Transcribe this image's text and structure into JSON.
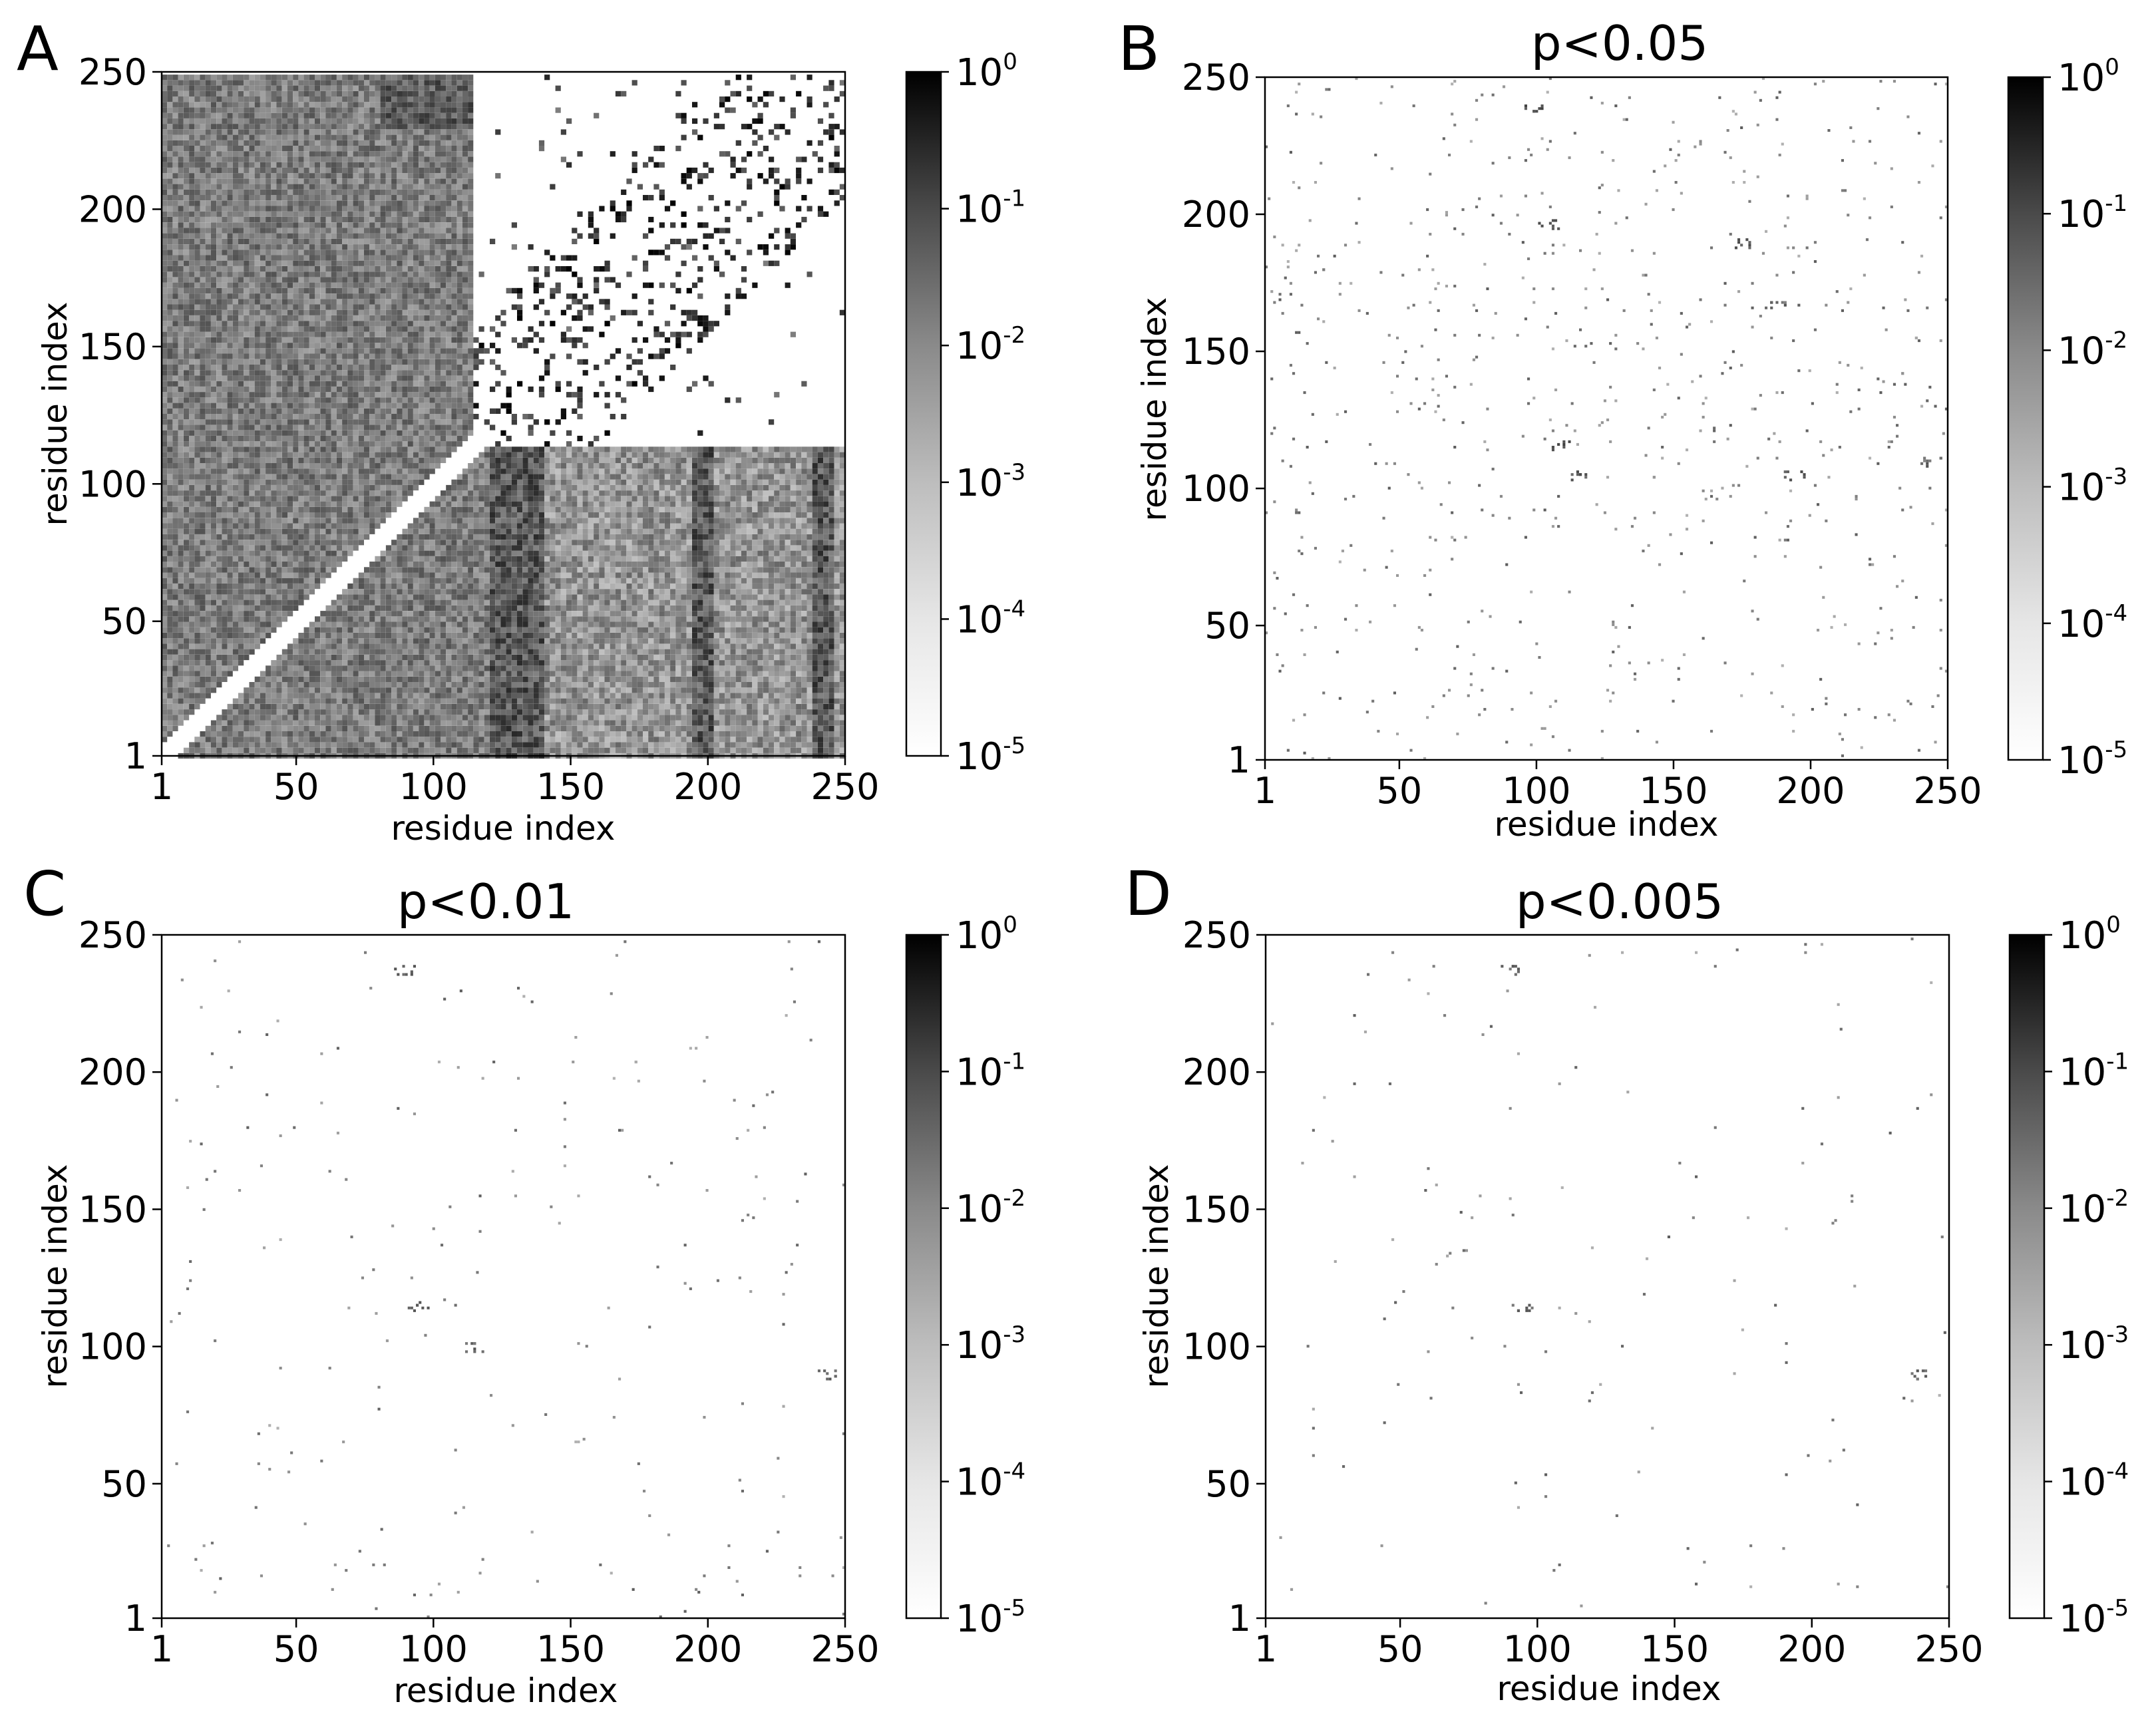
{
  "chart_data": [
    {
      "type": "heatmap",
      "panel": "A",
      "title": "",
      "xlabel": "residue index",
      "ylabel": "residue index",
      "xlim": [
        1,
        250
      ],
      "ylim": [
        1,
        250
      ],
      "xticks": [
        "1",
        "50",
        "100",
        "150",
        "200",
        "250"
      ],
      "yticks": [
        "1",
        "50",
        "100",
        "150",
        "200",
        "250"
      ],
      "color_scale": "log",
      "colorbar": {
        "min": 1e-05,
        "max": 1,
        "ticks": [
          "-5",
          "-4",
          "-3",
          "-2",
          "-1",
          "0"
        ],
        "colormap": "white-to-black"
      },
      "description": "Dense matrix. Lower-left triangle and left/upper-left region filled with noisy grey values; empty diagonal band from (1,1) to (120,120). Upper-right region mostly white with dark outlined contact blobs near the diagonal from 120 to 250. Dark vertical streaks at x≈110-140, 195-200, 240-245 below y≈110."
    },
    {
      "type": "heatmap",
      "panel": "B",
      "title": "p<0.05",
      "xlabel": "residue index",
      "ylabel": "residue index",
      "xlim": [
        1,
        250
      ],
      "ylim": [
        1,
        250
      ],
      "xticks": [
        "1",
        "50",
        "100",
        "150",
        "200",
        "250"
      ],
      "yticks": [
        "1",
        "50",
        "100",
        "150",
        "200",
        "250"
      ],
      "color_scale": "log",
      "colorbar": {
        "min": 1e-05,
        "max": 1,
        "ticks": [
          "-5",
          "-4",
          "-3",
          "-2",
          "-1",
          "0"
        ],
        "colormap": "white-to-black"
      },
      "clusters": [
        {
          "x": 100,
          "y": 240,
          "value": 0.05
        },
        {
          "x": 110,
          "y": 116,
          "value": 0.05
        },
        {
          "x": 115,
          "y": 105,
          "value": 0.03
        },
        {
          "x": 105,
          "y": 197,
          "value": 0.03
        },
        {
          "x": 175,
          "y": 190,
          "value": 0.03
        },
        {
          "x": 195,
          "y": 105,
          "value": 0.03
        },
        {
          "x": 188,
          "y": 168,
          "value": 0.02
        },
        {
          "x": 245,
          "y": 110,
          "value": 0.02
        }
      ],
      "scatter_density": 700
    },
    {
      "type": "heatmap",
      "panel": "C",
      "title": "p<0.01",
      "xlabel": "residue index",
      "ylabel": "residue index",
      "xlim": [
        1,
        250
      ],
      "ylim": [
        1,
        250
      ],
      "xticks": [
        "1",
        "50",
        "100",
        "150",
        "200",
        "250"
      ],
      "yticks": [
        "1",
        "50",
        "100",
        "150",
        "200",
        "250"
      ],
      "color_scale": "log",
      "colorbar": {
        "min": 1e-05,
        "max": 1,
        "ticks": [
          "-5",
          "-4",
          "-3",
          "-2",
          "-1",
          "0"
        ],
        "colormap": "white-to-black"
      },
      "clusters": [
        {
          "x": 90,
          "y": 238,
          "value": 0.02
        },
        {
          "x": 95,
          "y": 115,
          "value": 0.02
        },
        {
          "x": 115,
          "y": 100,
          "value": 0.02
        },
        {
          "x": 245,
          "y": 90,
          "value": 0.02
        }
      ],
      "scatter_density": 220
    },
    {
      "type": "heatmap",
      "panel": "D",
      "title": "p<0.005",
      "xlabel": "residue index",
      "ylabel": "residue index",
      "xlim": [
        1,
        250
      ],
      "ylim": [
        1,
        250
      ],
      "xticks": [
        "1",
        "50",
        "100",
        "150",
        "200",
        "250"
      ],
      "yticks": [
        "1",
        "50",
        "100",
        "150",
        "200",
        "250"
      ],
      "color_scale": "log",
      "colorbar": {
        "min": 1e-05,
        "max": 1,
        "ticks": [
          "-5",
          "-4",
          "-3",
          "-2",
          "-1",
          "0"
        ],
        "colormap": "white-to-black"
      },
      "clusters": [
        {
          "x": 90,
          "y": 238,
          "value": 0.02
        },
        {
          "x": 95,
          "y": 115,
          "value": 0.02
        },
        {
          "x": 240,
          "y": 90,
          "value": 0.02
        }
      ],
      "scatter_density": 140
    }
  ],
  "labels": {
    "panelA": "A",
    "panelB": "B",
    "panelC": "C",
    "panelD": "D",
    "titleB": "p<0.05",
    "titleC": "p<0.01",
    "titleD": "p<0.005",
    "xlabel": "residue index",
    "ylabel": "residue index",
    "ticks": [
      "1",
      "50",
      "100",
      "150",
      "200",
      "250"
    ],
    "cb_base": "10",
    "cb_exps": [
      "-5",
      "-4",
      "-3",
      "-2",
      "-1",
      "0"
    ]
  }
}
